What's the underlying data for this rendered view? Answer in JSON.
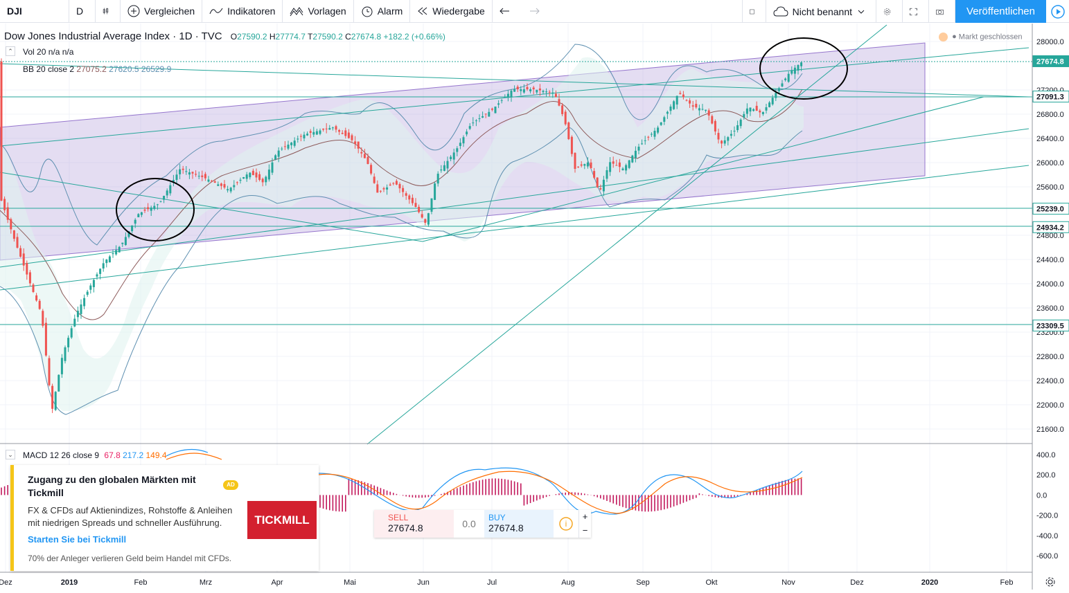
{
  "toolbar": {
    "symbol": "DJI",
    "interval": "D",
    "compare": "Vergleichen",
    "indicators": "Indikatoren",
    "templates": "Vorlagen",
    "alert": "Alarm",
    "replay": "Wiedergabe",
    "layout_name": "Nicht benannt",
    "publish": "Veröffentlichen"
  },
  "legend": {
    "title": "Dow Jones Industrial Average Index · 1D · TVC",
    "o_label": "O",
    "o": "27590.2",
    "h_label": "H",
    "h": "27774.7",
    "l_label": "T",
    "l": "27590.2",
    "c_label": "C",
    "c": "27674.8",
    "change": "+182.2 (+0.66%)",
    "vol": "Vol 20  n/a n/a",
    "bb_label": "BB 20 close 2",
    "bb_mid": "27075.2",
    "bb_up": "27620.5",
    "bb_low": "26529.9",
    "market": "Markt geschlossen"
  },
  "price_axis": [
    "28000.0",
    "27200.0",
    "26800.0",
    "26400.0",
    "26000.0",
    "25600.0",
    "24800.0",
    "24400.0",
    "24000.0",
    "23600.0",
    "23200.0",
    "22800.0",
    "22400.0",
    "22000.0",
    "21600.0"
  ],
  "price_tags": [
    "27674.8",
    "27091.3",
    "25239.0",
    "24934.2",
    "23309.5"
  ],
  "time_axis": [
    "Dez",
    "2019",
    "Feb",
    "Mrz",
    "Apr",
    "Mai",
    "Jun",
    "Jul",
    "Aug",
    "Sep",
    "Okt",
    "Nov",
    "Dez",
    "2020",
    "Feb"
  ],
  "macd": {
    "label": "MACD 12 26 close 9",
    "hist": "67.8",
    "macd": "217.2",
    "signal": "149.4",
    "axis": [
      "400.0",
      "200.0",
      "0.0",
      "-200.0",
      "-400.0",
      "-600.0"
    ]
  },
  "ad": {
    "title": "Zugang zu den globalen Märkten mit Tickmill",
    "badge": "AD",
    "body": "FX & CFDs auf Aktienindizes, Rohstoffe & Anleihen mit niedrigen Spreads und schneller Ausführung.",
    "link": "Starten Sie bei Tickmill",
    "footer": "70% der Anleger verlieren Geld beim Handel mit CFDs.",
    "logo": "TICKMILL"
  },
  "trade": {
    "sell_label": "SELL",
    "sell": "27674.8",
    "spread": "0.0",
    "buy_label": "BUY",
    "buy": "27674.8",
    "plus": "+",
    "minus": "−"
  },
  "colors": {
    "up": "#26a69a",
    "down": "#ef5350",
    "channel": "#b39ddb",
    "accent": "#2196f3"
  }
}
